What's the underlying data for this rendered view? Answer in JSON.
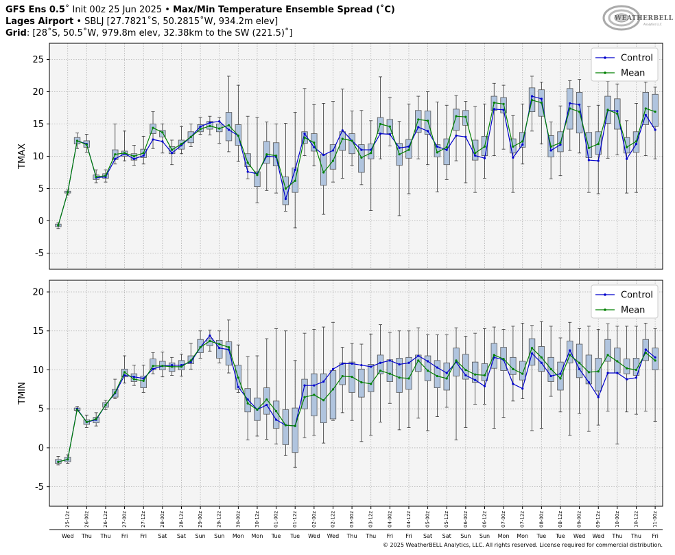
{
  "header": {
    "line1_model": "GFS Ens 0.5",
    "line1_init": "˚ Init 00z 25 Jun 2025 • ",
    "line1_title": "Max/Min Temperature Ensemble Spread (˚C)",
    "line2_station": "Lages Airport",
    "line2_detail": " • SBLJ [27.7821˚S, 50.2815˚W, 934.2m elev]",
    "line3_grid": "Grid",
    "line3_detail": ": [28˚S, 50.5˚W, 979.8m elev, 32.38km to the SW (221.5)˚]"
  },
  "logo": {
    "text": "WEATHERBELL",
    "sub": "Analytics LLC"
  },
  "copyright": "© 2025 WeatherBELL Analytics, LLC. All rights reserved. License required for commercial distribution.",
  "colors": {
    "control": "#0000cc",
    "mean": "#008000",
    "box_fill": "#b0c4de",
    "box_edge": "#555555",
    "panel_bg": "#f4f4f4",
    "grid": "#b0b0b0"
  },
  "chart_data": [
    {
      "type": "box",
      "name": "TMAX",
      "ylabel": "TMAX",
      "ylim": [
        -7.5,
        27.5
      ],
      "yticks": [
        -5,
        0,
        5,
        10,
        15,
        20,
        25
      ],
      "legend": [
        "Control",
        "Mean"
      ],
      "legend_position": "top-right",
      "grid": true,
      "control": [
        -0.7,
        4.4,
        12.4,
        11.9,
        6.7,
        6.8,
        9.6,
        10.4,
        9.6,
        10.1,
        12.6,
        12.3,
        10.5,
        11.7,
        13.0,
        14.6,
        15.2,
        15.4,
        14.1,
        13.2,
        7.6,
        7.3,
        10.0,
        9.9,
        3.4,
        7.9,
        13.5,
        11.4,
        10.2,
        10.9,
        14.0,
        12.4,
        11.0,
        11.0,
        13.5,
        13.4,
        11.3,
        11.5,
        14.5,
        13.9,
        11.5,
        11.0,
        13.2,
        13.0,
        10.1,
        9.7,
        17.3,
        17.2,
        9.8,
        11.8,
        19.3,
        18.9,
        10.9,
        11.8,
        18.2,
        18.0,
        9.4,
        9.3,
        17.1,
        17.0,
        9.6,
        11.9,
        16.4,
        14.1
      ],
      "mean": [
        -0.7,
        4.4,
        12.4,
        11.8,
        6.8,
        7.0,
        10.3,
        10.5,
        10.0,
        10.5,
        14.4,
        13.7,
        11.0,
        11.9,
        13.0,
        14.2,
        14.7,
        14.3,
        14.8,
        13.2,
        9.0,
        7.1,
        10.3,
        10.1,
        5.0,
        6.2,
        12.9,
        12.1,
        7.5,
        9.3,
        12.7,
        12.4,
        9.8,
        10.5,
        15.0,
        14.6,
        10.3,
        11.0,
        15.7,
        15.5,
        10.6,
        11.4,
        16.2,
        16.1,
        10.5,
        11.5,
        18.3,
        18.1,
        11.5,
        12.3,
        18.7,
        18.3,
        11.5,
        12.1,
        17.4,
        16.9,
        11.3,
        11.9,
        17.2,
        16.6,
        11.4,
        12.3,
        17.4,
        16.9
      ],
      "q1": [
        -0.9,
        4.3,
        11.9,
        11.4,
        6.4,
        6.6,
        9.5,
        10.0,
        9.4,
        9.8,
        13.5,
        13.0,
        10.4,
        11.1,
        12.1,
        13.8,
        14.2,
        13.8,
        12.4,
        11.7,
        8.4,
        5.3,
        8.9,
        8.5,
        2.5,
        4.4,
        12.0,
        10.8,
        5.5,
        8.0,
        10.9,
        10.4,
        7.5,
        9.6,
        13.5,
        13.5,
        8.6,
        9.7,
        13.7,
        13.4,
        9.9,
        8.7,
        14.0,
        14.8,
        9.4,
        10.1,
        17.1,
        16.7,
        10.5,
        11.4,
        16.9,
        16.2,
        9.9,
        10.7,
        14.2,
        13.6,
        9.8,
        10.3,
        15.1,
        14.2,
        10.5,
        10.6,
        14.9,
        14.6
      ],
      "q3": [
        -0.5,
        4.6,
        12.9,
        12.4,
        7.1,
        7.3,
        11.0,
        10.8,
        10.4,
        11.1,
        15.0,
        14.0,
        11.5,
        12.5,
        13.8,
        14.9,
        15.4,
        15.0,
        16.8,
        14.9,
        10.4,
        7.6,
        12.3,
        12.1,
        6.8,
        8.2,
        13.8,
        13.5,
        10.3,
        11.8,
        13.8,
        13.5,
        11.8,
        11.9,
        16.0,
        15.7,
        12.0,
        12.6,
        17.1,
        17.0,
        11.8,
        12.7,
        17.3,
        17.1,
        12.5,
        13.1,
        19.3,
        19.1,
        12.7,
        13.7,
        20.6,
        20.3,
        13.2,
        13.8,
        20.5,
        19.9,
        13.7,
        13.8,
        19.3,
        18.9,
        12.9,
        13.8,
        19.9,
        19.6
      ],
      "wmin": [
        -1.2,
        4.0,
        11.2,
        10.6,
        5.9,
        6.0,
        8.8,
        9.3,
        8.6,
        8.8,
        11.2,
        10.5,
        8.7,
        10.4,
        11.5,
        13.4,
        13.3,
        12.0,
        10.7,
        9.2,
        6.5,
        2.8,
        4.7,
        4.3,
        1.5,
        -1.1,
        10.1,
        8.5,
        1.0,
        6.0,
        6.6,
        8.6,
        5.6,
        1.6,
        9.6,
        11.6,
        0.8,
        4.2,
        9.6,
        8.7,
        4.5,
        6.4,
        9.3,
        5.9,
        4.4,
        6.6,
        10.1,
        11.1,
        4.4,
        8.8,
        13.9,
        11.9,
        6.5,
        7.0,
        10.9,
        10.5,
        4.4,
        4.2,
        9.7,
        10.2,
        4.3,
        4.4,
        10.1,
        9.6
      ],
      "wmax": [
        -0.3,
        4.8,
        13.6,
        13.4,
        7.9,
        7.9,
        15.0,
        13.9,
        11.7,
        13.1,
        16.9,
        15.0,
        12.5,
        14.6,
        15.0,
        16.0,
        16.2,
        16.0,
        22.4,
        21.0,
        16.2,
        16.0,
        15.3,
        15.0,
        15.1,
        16.8,
        20.5,
        18.0,
        18.2,
        18.5,
        20.4,
        17.0,
        17.1,
        15.5,
        22.3,
        19.1,
        15.4,
        18.1,
        19.3,
        20.0,
        18.4,
        17.9,
        19.4,
        18.5,
        17.7,
        18.1,
        21.3,
        21.0,
        16.3,
        18.1,
        22.4,
        21.5,
        15.3,
        17.8,
        21.7,
        21.9,
        17.7,
        17.9,
        21.6,
        21.2,
        15.5,
        18.2,
        21.5,
        20.7
      ]
    },
    {
      "type": "box",
      "name": "TMIN",
      "ylabel": "TMIN",
      "ylim": [
        -7.5,
        21.5
      ],
      "yticks": [
        -5,
        0,
        5,
        10,
        15,
        20
      ],
      "legend": [
        "Control",
        "Mean"
      ],
      "legend_position": "top-right",
      "grid": true,
      "control": [
        -1.8,
        -1.5,
        5.0,
        3.3,
        3.6,
        5.5,
        7.0,
        9.3,
        9.1,
        8.9,
        10.1,
        10.5,
        10.6,
        10.6,
        11.0,
        12.9,
        14.4,
        12.8,
        12.6,
        7.8,
        6.2,
        4.9,
        5.5,
        3.6,
        2.9,
        2.8,
        8.0,
        8.0,
        8.5,
        10.1,
        10.8,
        10.8,
        10.6,
        10.4,
        10.9,
        11.2,
        10.7,
        10.9,
        11.8,
        11.1,
        10.3,
        9.6,
        11.0,
        9.3,
        8.7,
        7.9,
        11.6,
        11.3,
        8.2,
        7.6,
        12.1,
        10.9,
        9.2,
        9.5,
        12.5,
        10.1,
        8.4,
        6.5,
        9.6,
        9.6,
        8.8,
        9.0,
        12.6,
        11.6
      ],
      "mean": [
        -1.8,
        -1.5,
        4.9,
        3.3,
        3.7,
        5.5,
        7.1,
        9.7,
        8.8,
        8.6,
        10.5,
        10.5,
        10.4,
        10.4,
        11.2,
        12.9,
        13.7,
        13.3,
        12.9,
        9.0,
        5.7,
        4.9,
        6.2,
        4.7,
        2.9,
        2.8,
        6.5,
        6.8,
        6.1,
        7.5,
        9.2,
        9.1,
        8.4,
        8.2,
        9.9,
        9.5,
        9.0,
        8.9,
        11.2,
        9.9,
        9.2,
        8.9,
        11.2,
        10.0,
        9.4,
        9.3,
        11.9,
        11.4,
        10.1,
        9.5,
        12.8,
        11.6,
        10.1,
        8.9,
        11.9,
        10.9,
        9.7,
        9.8,
        11.9,
        11.1,
        10.2,
        10.0,
        12.2,
        11.2
      ],
      "q1": [
        -2.0,
        -1.8,
        4.8,
        3.0,
        3.2,
        5.2,
        6.5,
        9.1,
        8.5,
        7.7,
        10.0,
        10.0,
        9.8,
        10.0,
        10.8,
        12.2,
        13.1,
        11.5,
        10.6,
        7.5,
        4.6,
        3.5,
        4.3,
        2.5,
        0.4,
        -0.6,
        5.0,
        4.1,
        3.2,
        3.7,
        8.1,
        7.1,
        6.5,
        7.2,
        9.5,
        8.5,
        7.1,
        7.5,
        9.8,
        8.6,
        7.7,
        7.4,
        9.2,
        8.8,
        8.4,
        8.6,
        10.2,
        9.9,
        9.4,
        8.7,
        10.6,
        9.8,
        8.5,
        7.4,
        10.9,
        9.0,
        8.2,
        7.3,
        11.1,
        9.6,
        9.5,
        9.3,
        11.2,
        10.0
      ],
      "q3": [
        -1.5,
        -1.2,
        5.1,
        3.6,
        3.9,
        5.8,
        7.5,
        10.1,
        9.5,
        9.2,
        11.4,
        11.1,
        10.9,
        11.2,
        11.8,
        13.9,
        14.0,
        13.8,
        13.6,
        10.6,
        7.6,
        6.4,
        7.7,
        6.0,
        4.9,
        5.1,
        8.8,
        9.5,
        9.5,
        9.9,
        10.9,
        11.0,
        10.1,
        10.7,
        11.9,
        11.3,
        11.5,
        11.6,
        11.9,
        11.8,
        11.2,
        10.9,
        12.8,
        12.0,
        11.0,
        10.8,
        13.4,
        12.9,
        11.6,
        11.1,
        14.0,
        13.0,
        11.6,
        11.0,
        13.7,
        13.3,
        11.9,
        11.5,
        13.9,
        12.8,
        11.4,
        11.5,
        13.9,
        12.8
      ],
      "wmin": [
        -2.2,
        -2.0,
        4.7,
        2.6,
        2.8,
        4.9,
        6.3,
        8.3,
        8.0,
        7.1,
        9.5,
        9.1,
        9.3,
        9.2,
        10.1,
        11.5,
        12.4,
        10.9,
        9.6,
        7.1,
        1.0,
        1.5,
        1.1,
        0.5,
        -1.0,
        -2.5,
        1.3,
        1.6,
        0.6,
        3.5,
        4.5,
        3.5,
        0.8,
        1.6,
        3.3,
        5.7,
        2.3,
        2.6,
        3.8,
        2.2,
        4.0,
        5.2,
        1.0,
        2.6,
        5.6,
        5.6,
        2.5,
        3.9,
        6.0,
        6.3,
        2.2,
        2.5,
        6.6,
        4.6,
        1.6,
        4.4,
        2.1,
        2.9,
        4.7,
        0.5,
        4.6,
        4.3,
        4.7,
        3.4
      ],
      "wmax": [
        -1.1,
        -0.9,
        5.3,
        4.2,
        4.5,
        6.1,
        8.8,
        11.8,
        10.6,
        10.6,
        12.2,
        12.3,
        11.6,
        12.0,
        13.4,
        15.0,
        15.1,
        15.0,
        16.4,
        13.2,
        11.7,
        11.8,
        14.0,
        15.3,
        15.0,
        11.2,
        14.7,
        15.2,
        15.5,
        16.1,
        12.9,
        13.4,
        13.3,
        14.6,
        15.8,
        14.8,
        15.0,
        15.0,
        15.4,
        14.5,
        14.5,
        14.5,
        15.4,
        14.3,
        14.7,
        15.3,
        15.5,
        15.2,
        15.6,
        16.0,
        15.7,
        16.2,
        15.6,
        14.1,
        16.1,
        15.3,
        15.6,
        15.2,
        15.9,
        15.6,
        15.6,
        15.6,
        16.0,
        15.3
      ]
    }
  ],
  "x_axis": {
    "date_labels": [
      "25-12z",
      "26-00z",
      "26-12z",
      "27-00z",
      "27-12z",
      "28-00z",
      "28-12z",
      "29-00z",
      "29-12z",
      "30-00z",
      "30-12z",
      "01-00z",
      "01-12z",
      "02-00z",
      "02-12z",
      "03-00z",
      "03-12z",
      "04-00z",
      "04-12z",
      "05-00z",
      "05-12z",
      "06-00z",
      "06-12z",
      "07-00z",
      "07-12z",
      "08-00z",
      "08-12z",
      "09-00z",
      "09-12z",
      "10-00z",
      "10-12z",
      "11-00z"
    ],
    "day_labels": [
      "Wed",
      "Thu",
      "Thu",
      "Fri",
      "Fri",
      "Sat",
      "Sat",
      "Sun",
      "Sun",
      "Mon",
      "Mon",
      "Tue",
      "Tue",
      "Wed",
      "Wed",
      "Thu",
      "Thu",
      "Fri",
      "Fri",
      "Sat",
      "Sat",
      "Sun",
      "Sun",
      "Mon",
      "Mon",
      "Tue",
      "Tue",
      "Wed",
      "Wed",
      "Thu",
      "Thu",
      "Fri"
    ]
  }
}
